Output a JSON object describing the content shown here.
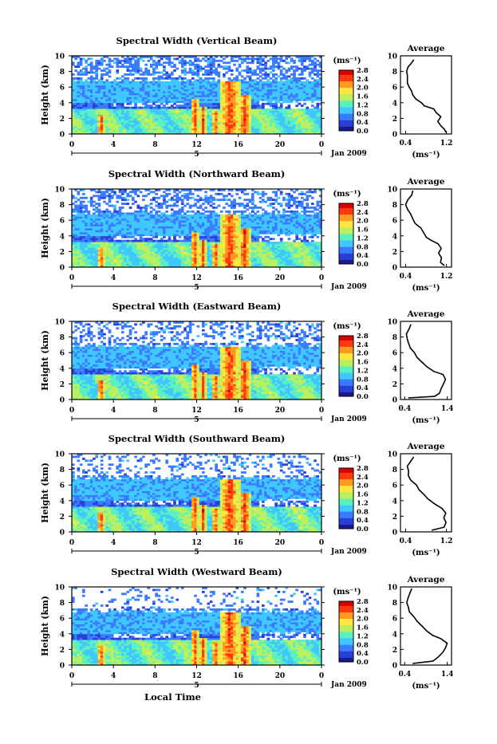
{
  "figure": {
    "x_axis_label": "Local Time",
    "date_label": "Jan 2009",
    "colorbar_unit": "(ms⁻¹)",
    "average_title": "Average",
    "average_unit": "(ms⁻¹)",
    "colors": {
      "background": "#ffffff",
      "colormap": [
        "#1a1a8c",
        "#2a3fd6",
        "#3a7bff",
        "#3fc8ff",
        "#5cf0c0",
        "#b8f060",
        "#ffe640",
        "#ff9a20",
        "#ff3a10",
        "#d80000"
      ]
    }
  },
  "chart_data": [
    {
      "type": "heatmap",
      "title": "Spectral Width (Vertical Beam)",
      "ylabel": "Height (km)",
      "xlabel": "Local Time",
      "x_ticks": [
        "0",
        "4",
        "8",
        "12",
        "16",
        "20",
        "0"
      ],
      "day_marker": "5",
      "y_ticks": [
        "0",
        "2",
        "4",
        "6",
        "8",
        "10"
      ],
      "xlim": [
        0,
        24
      ],
      "ylim": [
        0,
        10
      ],
      "colorbar": {
        "ticks": [
          "0.0",
          "0.4",
          "0.8",
          "1.2",
          "1.6",
          "2.0",
          "2.4",
          "2.8"
        ],
        "range": [
          0,
          2.8
        ]
      },
      "average": {
        "x_ticks": [
          "0.4",
          "1.2"
        ],
        "xlim": [
          0.3,
          1.3
        ],
        "y_ticks": [
          "0",
          "2",
          "4",
          "6",
          "8",
          "10"
        ],
        "profile": [
          [
            1.2,
            0.2
          ],
          [
            1.15,
            0.6
          ],
          [
            1.1,
            1.0
          ],
          [
            1.05,
            1.6
          ],
          [
            1.1,
            2.2
          ],
          [
            1.0,
            2.8
          ],
          [
            0.95,
            3.2
          ],
          [
            0.75,
            3.6
          ],
          [
            0.7,
            4.0
          ],
          [
            0.6,
            4.5
          ],
          [
            0.55,
            5.0
          ],
          [
            0.5,
            5.5
          ],
          [
            0.48,
            6.0
          ],
          [
            0.45,
            6.5
          ],
          [
            0.45,
            7.0
          ],
          [
            0.42,
            7.5
          ],
          [
            0.42,
            8.0
          ],
          [
            0.45,
            8.6
          ],
          [
            0.5,
            9.0
          ],
          [
            0.55,
            9.5
          ]
        ]
      }
    },
    {
      "type": "heatmap",
      "title": "Spectral Width (Northward Beam)",
      "ylabel": "Height (km)",
      "xlabel": "Local Time",
      "x_ticks": [
        "0",
        "4",
        "8",
        "12",
        "16",
        "20",
        "0"
      ],
      "day_marker": "5",
      "y_ticks": [
        "0",
        "2",
        "4",
        "6",
        "8",
        "10"
      ],
      "xlim": [
        0,
        24
      ],
      "ylim": [
        0,
        10
      ],
      "colorbar": {
        "ticks": [
          "0.0",
          "0.4",
          "0.8",
          "1.2",
          "1.6",
          "2.0",
          "2.4",
          "2.8"
        ],
        "range": [
          0,
          2.8
        ]
      },
      "average": {
        "x_ticks": [
          "0.4",
          "1.2"
        ],
        "xlim": [
          0.3,
          1.3
        ],
        "y_ticks": [
          "0",
          "2",
          "4",
          "6",
          "8",
          "10"
        ],
        "profile": [
          [
            1.15,
            0.2
          ],
          [
            1.1,
            0.6
          ],
          [
            1.12,
            1.2
          ],
          [
            1.05,
            1.8
          ],
          [
            1.1,
            2.4
          ],
          [
            1.05,
            3.0
          ],
          [
            0.9,
            3.4
          ],
          [
            0.8,
            3.8
          ],
          [
            0.75,
            4.4
          ],
          [
            0.7,
            5.0
          ],
          [
            0.6,
            5.6
          ],
          [
            0.55,
            6.2
          ],
          [
            0.5,
            6.8
          ],
          [
            0.45,
            7.4
          ],
          [
            0.42,
            8.0
          ],
          [
            0.45,
            8.6
          ],
          [
            0.5,
            9.2
          ],
          [
            0.55,
            9.8
          ]
        ]
      }
    },
    {
      "type": "heatmap",
      "title": "Spectral Width (Eastward Beam)",
      "ylabel": "Height (km)",
      "xlabel": "Local Time",
      "x_ticks": [
        "0",
        "4",
        "8",
        "12",
        "16",
        "20",
        "0"
      ],
      "day_marker": "5",
      "y_ticks": [
        "0",
        "2",
        "4",
        "6",
        "8",
        "10"
      ],
      "xlim": [
        0,
        24
      ],
      "ylim": [
        0,
        10
      ],
      "colorbar": {
        "ticks": [
          "0.0",
          "0.4",
          "0.8",
          "1.2",
          "1.6",
          "2.0",
          "2.4",
          "2.8"
        ],
        "range": [
          0,
          2.8
        ]
      },
      "average": {
        "x_ticks": [
          "0.4",
          "1.4"
        ],
        "xlim": [
          0.3,
          1.5
        ],
        "y_ticks": [
          "0",
          "2",
          "4",
          "6",
          "8",
          "10"
        ],
        "profile": [
          [
            0.5,
            0.2
          ],
          [
            1.1,
            0.4
          ],
          [
            1.2,
            0.8
          ],
          [
            1.25,
            1.4
          ],
          [
            1.3,
            2.0
          ],
          [
            1.35,
            2.6
          ],
          [
            1.3,
            3.2
          ],
          [
            1.1,
            3.6
          ],
          [
            0.9,
            4.2
          ],
          [
            0.8,
            4.8
          ],
          [
            0.7,
            5.4
          ],
          [
            0.62,
            6.0
          ],
          [
            0.55,
            6.6
          ],
          [
            0.5,
            7.2
          ],
          [
            0.45,
            7.8
          ],
          [
            0.45,
            8.4
          ],
          [
            0.5,
            9.0
          ],
          [
            0.55,
            9.6
          ]
        ]
      }
    },
    {
      "type": "heatmap",
      "title": "Spectral Width (Southward Beam)",
      "ylabel": "Height (km)",
      "xlabel": "Local Time",
      "x_ticks": [
        "0",
        "4",
        "8",
        "12",
        "16",
        "20",
        "0"
      ],
      "day_marker": "5",
      "y_ticks": [
        "0",
        "2",
        "4",
        "6",
        "8",
        "10"
      ],
      "xlim": [
        0,
        24
      ],
      "ylim": [
        0,
        10
      ],
      "colorbar": {
        "ticks": [
          "0.0",
          "0.4",
          "0.8",
          "1.2",
          "1.6",
          "2.0",
          "2.4",
          "2.8"
        ],
        "range": [
          0,
          2.8
        ]
      },
      "average": {
        "x_ticks": [
          "0.4",
          "1.2"
        ],
        "xlim": [
          0.3,
          1.3
        ],
        "y_ticks": [
          "0",
          "2",
          "4",
          "6",
          "8",
          "10"
        ],
        "profile": [
          [
            0.9,
            0.2
          ],
          [
            1.15,
            0.6
          ],
          [
            1.2,
            1.2
          ],
          [
            1.15,
            1.8
          ],
          [
            1.2,
            2.4
          ],
          [
            1.1,
            3.0
          ],
          [
            0.95,
            3.6
          ],
          [
            0.85,
            4.2
          ],
          [
            0.75,
            4.8
          ],
          [
            0.65,
            5.4
          ],
          [
            0.6,
            6.0
          ],
          [
            0.5,
            6.6
          ],
          [
            0.47,
            7.2
          ],
          [
            0.45,
            7.8
          ],
          [
            0.45,
            8.4
          ],
          [
            0.48,
            9.0
          ],
          [
            0.55,
            9.6
          ]
        ]
      }
    },
    {
      "type": "heatmap",
      "title": "Spectral Width (Westward Beam)",
      "ylabel": "Height (km)",
      "xlabel": "Local Time",
      "x_ticks": [
        "0",
        "4",
        "8",
        "12",
        "16",
        "20",
        "0"
      ],
      "day_marker": "5",
      "y_ticks": [
        "0",
        "2",
        "4",
        "6",
        "8",
        "10"
      ],
      "xlim": [
        0,
        24
      ],
      "ylim": [
        0,
        10
      ],
      "colorbar": {
        "ticks": [
          "0.0",
          "0.4",
          "0.8",
          "1.2",
          "1.6",
          "2.0",
          "2.4",
          "2.8"
        ],
        "range": [
          0,
          2.8
        ]
      },
      "average": {
        "x_ticks": [
          "0.4",
          "1.4"
        ],
        "xlim": [
          0.3,
          1.5
        ],
        "y_ticks": [
          "0",
          "2",
          "4",
          "6",
          "8",
          "10"
        ],
        "profile": [
          [
            0.6,
            0.2
          ],
          [
            1.05,
            0.5
          ],
          [
            1.2,
            1.0
          ],
          [
            1.3,
            1.6
          ],
          [
            1.35,
            2.2
          ],
          [
            1.4,
            2.8
          ],
          [
            1.25,
            3.4
          ],
          [
            1.05,
            3.8
          ],
          [
            0.9,
            4.4
          ],
          [
            0.8,
            5.0
          ],
          [
            0.7,
            5.6
          ],
          [
            0.6,
            6.2
          ],
          [
            0.52,
            6.8
          ],
          [
            0.48,
            7.4
          ],
          [
            0.45,
            8.0
          ],
          [
            0.47,
            8.6
          ],
          [
            0.52,
            9.2
          ],
          [
            0.58,
            9.8
          ]
        ]
      }
    }
  ]
}
